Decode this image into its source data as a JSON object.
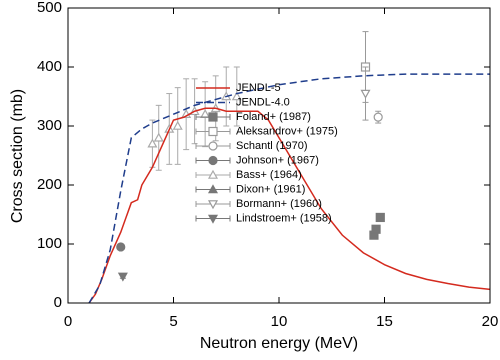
{
  "chart_data": {
    "type": "line",
    "xlabel": "Neutron energy (MeV)",
    "ylabel": "Cross section (mb)",
    "xlim": [
      0,
      20
    ],
    "xticks": [
      0,
      5,
      10,
      15,
      20
    ],
    "ylim": [
      0,
      500
    ],
    "yticks": [
      0,
      100,
      200,
      300,
      400,
      500
    ],
    "lines": [
      {
        "name": "JENDL-5",
        "color": "#d42a1e",
        "dash": "none",
        "x": [
          1,
          1.3,
          1.6,
          2,
          2.5,
          3,
          3.3,
          3.5,
          4,
          4.5,
          5,
          5.5,
          6,
          6.5,
          7,
          7.5,
          8,
          9,
          9.5,
          10,
          11,
          12,
          13,
          14,
          15,
          16,
          17,
          18,
          19,
          20
        ],
        "values": [
          0,
          15,
          40,
          80,
          120,
          170,
          175,
          200,
          230,
          270,
          310,
          315,
          325,
          330,
          330,
          325,
          325,
          325,
          310,
          280,
          220,
          160,
          115,
          85,
          65,
          50,
          40,
          33,
          27,
          23
        ]
      },
      {
        "name": "JENDL-4.0",
        "color": "#1f3d8c",
        "dash": "7,4",
        "x": [
          1,
          1.5,
          2,
          2.5,
          3,
          3.5,
          4,
          5,
          6,
          7,
          8,
          10,
          12,
          14,
          16,
          18,
          20
        ],
        "values": [
          0,
          30,
          90,
          190,
          280,
          295,
          305,
          320,
          335,
          345,
          355,
          370,
          380,
          385,
          388,
          388,
          388
        ]
      }
    ],
    "series": [
      {
        "name": "Foland+ (1987)",
        "color": "#777777",
        "marker": "square-filled",
        "x": [
          14.5,
          14.6,
          14.8
        ],
        "values": [
          115,
          125,
          145
        ],
        "errors": [
          5,
          5,
          6
        ]
      },
      {
        "name": "Aleksandrov+ (1975)",
        "color": "#999999",
        "marker": "square-open",
        "x": [
          14.1
        ],
        "values": [
          400
        ],
        "errors": [
          60
        ]
      },
      {
        "name": "Schantl (1970)",
        "color": "#999999",
        "marker": "circle-open",
        "x": [
          14.7
        ],
        "values": [
          315
        ],
        "errors": [
          10
        ]
      },
      {
        "name": "Johnson+ (1967)",
        "color": "#777777",
        "marker": "circle-filled",
        "x": [
          2.5
        ],
        "values": [
          95
        ],
        "errors": [
          4
        ]
      },
      {
        "name": "Bass+ (1964)",
        "color": "#aaaaaa",
        "marker": "triangle-open",
        "x": [
          4,
          4.3,
          4.8,
          5.2,
          5.6,
          6,
          6.5,
          7,
          7.5,
          8
        ],
        "values": [
          270,
          280,
          295,
          300,
          320,
          325,
          320,
          330,
          350,
          350
        ],
        "errors": [
          40,
          55,
          60,
          65,
          60,
          55,
          55,
          55,
          50,
          50
        ]
      },
      {
        "name": "Dixon+ (1961)",
        "color": "#777777",
        "marker": "triangle-filled",
        "x": [],
        "values": [],
        "errors": []
      },
      {
        "name": "Bormann+ (1960)",
        "color": "#999999",
        "marker": "tri-down-open",
        "x": [
          14.1
        ],
        "values": [
          355
        ],
        "errors": [
          45
        ]
      },
      {
        "name": "Lindstroem+ (1958)",
        "color": "#777777",
        "marker": "tri-down-filled",
        "x": [
          2.6
        ],
        "values": [
          45
        ],
        "errors": [
          3
        ]
      }
    ]
  }
}
